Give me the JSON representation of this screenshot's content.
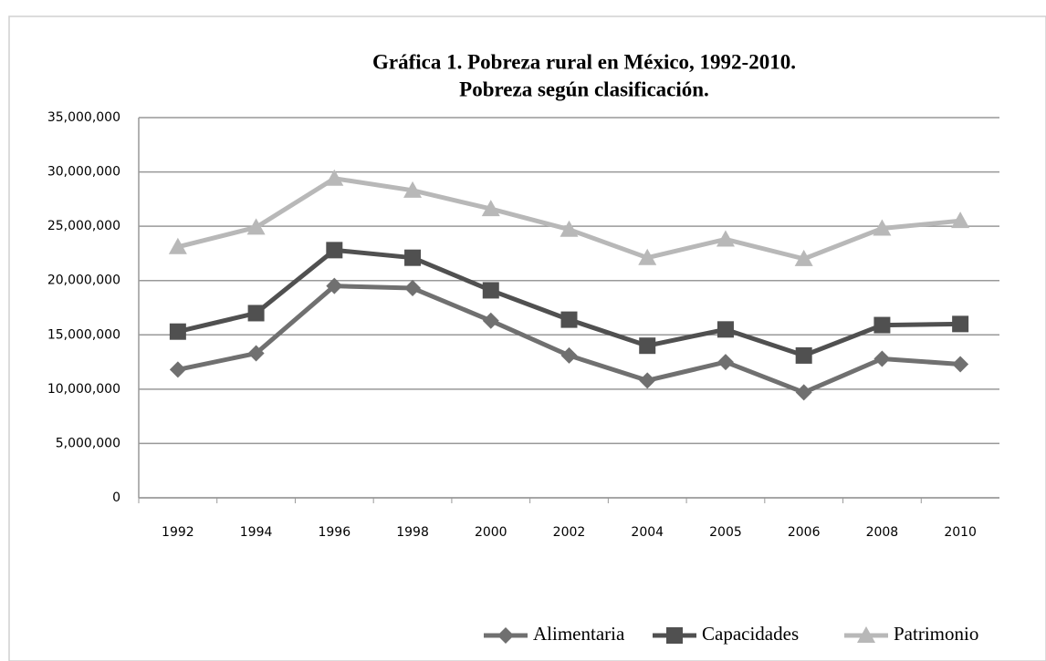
{
  "chart_data": {
    "type": "line",
    "title": "Gráfica 1. Pobreza rural en México, 1992-2010.",
    "subtitle": "Pobreza según clasificación.",
    "categories": [
      "1992",
      "1994",
      "1996",
      "1998",
      "2000",
      "2002",
      "2004",
      "2005",
      "2006",
      "2008",
      "2010"
    ],
    "series": [
      {
        "name": "Alimentaria",
        "color": "#707070",
        "marker": "diamond",
        "values": [
          11800000,
          13300000,
          19500000,
          19300000,
          16300000,
          13100000,
          10800000,
          12500000,
          9700000,
          12800000,
          12300000
        ]
      },
      {
        "name": "Capacidades",
        "color": "#505050",
        "marker": "square",
        "values": [
          15300000,
          17000000,
          22800000,
          22100000,
          19100000,
          16400000,
          14000000,
          15500000,
          13100000,
          15900000,
          16000000
        ]
      },
      {
        "name": "Patrimonio",
        "color": "#b8b8b8",
        "marker": "triangle",
        "values": [
          23100000,
          24900000,
          29400000,
          28300000,
          26600000,
          24700000,
          22100000,
          23800000,
          22000000,
          24800000,
          25500000
        ]
      }
    ],
    "ylim": [
      0,
      35000000
    ],
    "yticks": [
      0,
      {
        "value": 5000000,
        "label": "5,000,000"
      },
      {
        "value": 10000000,
        "label": "10,000,000"
      },
      {
        "value": 15000000,
        "label": "15,000,000"
      },
      {
        "value": 20000000,
        "label": "20,000,000"
      },
      {
        "value": 25000000,
        "label": "25,000,000"
      },
      {
        "value": 30000000,
        "label": "30,000,000"
      },
      {
        "value": 35000000,
        "label": "35,000,000"
      }
    ],
    "grid": true,
    "legend": "bottom-right"
  }
}
